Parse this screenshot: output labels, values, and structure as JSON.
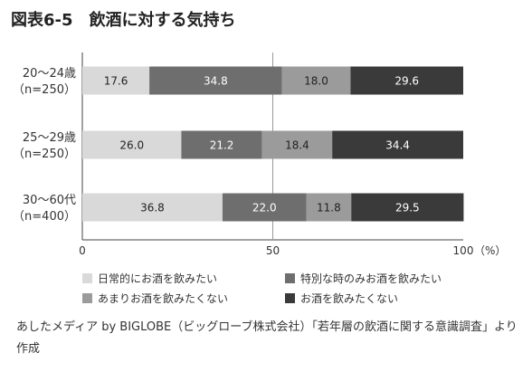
{
  "title": "図表6-5　飲酒に対する気持ち",
  "source": "あしたメディア by BIGLOBE（ビッグローブ株式会社）「若年層の飲酒に関する意識調査」より作成",
  "colors": {
    "s0": "#d9d9d9",
    "s1": "#6e6e6e",
    "s2": "#9b9b9b",
    "s3": "#3a3a3a"
  },
  "chart_data": {
    "type": "bar",
    "orientation": "horizontal",
    "stacked": true,
    "categories": [
      {
        "line1": "20〜24歳",
        "line2": "（n=250）"
      },
      {
        "line1": "25〜29歳",
        "line2": "（n=250）"
      },
      {
        "line1": "30〜60代",
        "line2": "（n=400）"
      }
    ],
    "series": [
      {
        "name": "日常的にお酒を飲みたい",
        "values": [
          17.6,
          26.0,
          36.8
        ]
      },
      {
        "name": "特別な時のみお酒を飲みたい",
        "values": [
          34.8,
          21.2,
          22.0
        ]
      },
      {
        "name": "あまりお酒を飲みたくない",
        "values": [
          18.0,
          18.4,
          11.8
        ]
      },
      {
        "name": "お酒を飲みたくない",
        "values": [
          29.6,
          34.4,
          29.5
        ]
      }
    ],
    "value_labels": [
      [
        "17.6",
        "26.0",
        "36.8"
      ],
      [
        "34.8",
        "21.2",
        "22.0"
      ],
      [
        "18.0",
        "18.4",
        "11.8"
      ],
      [
        "29.6",
        "34.4",
        "29.5"
      ]
    ],
    "xlim": [
      0,
      100
    ],
    "xticks": [
      0,
      50,
      100
    ],
    "xtick_labels": [
      "0",
      "50",
      "100"
    ],
    "xunit": "（%）",
    "gridline_at": 50,
    "legend_position": "bottom"
  }
}
